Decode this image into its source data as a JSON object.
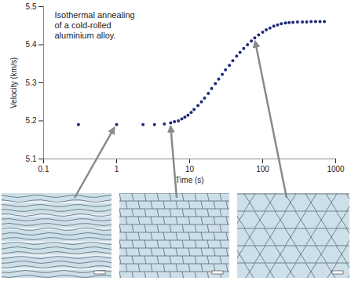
{
  "chart_data": {
    "type": "scatter",
    "title": "Isothermal annealing\nof a cold-rolled\naluminium alloy.",
    "x_label": "Time (s)",
    "y_label": "Velocity (km/s)",
    "log": "x",
    "grid": false,
    "color": "#1f2a78",
    "marker": "circle",
    "xlim": [
      0.1,
      1000
    ],
    "xticks": [
      0.1,
      1,
      10,
      100,
      1000
    ],
    "ylim": [
      5.1,
      5.5
    ],
    "yticks": [
      5.1,
      5.2,
      5.3,
      5.4,
      5.5
    ],
    "x": [
      0.3,
      1,
      2.3,
      3.3,
      4.5,
      5.5,
      6.2,
      7,
      7.8,
      8.6,
      9.5,
      10.5,
      11.5,
      13,
      14.5,
      16,
      18,
      20,
      22.5,
      25,
      28,
      31,
      35,
      39,
      44,
      49,
      55,
      62,
      70,
      78,
      88,
      100,
      112,
      126,
      142,
      160,
      180,
      205,
      230,
      260,
      300,
      350,
      400,
      460,
      530,
      610,
      700
    ],
    "values": [
      5.19,
      5.19,
      5.19,
      5.19,
      5.192,
      5.195,
      5.198,
      5.2,
      5.205,
      5.21,
      5.215,
      5.222,
      5.23,
      5.24,
      5.25,
      5.26,
      5.272,
      5.285,
      5.298,
      5.31,
      5.322,
      5.334,
      5.346,
      5.358,
      5.37,
      5.38,
      5.39,
      5.4,
      5.41,
      5.418,
      5.426,
      5.433,
      5.439,
      5.444,
      5.449,
      5.452,
      5.455,
      5.457,
      5.458,
      5.459,
      5.46,
      5.46,
      5.46,
      5.461,
      5.461,
      5.461,
      5.461
    ]
  }
}
